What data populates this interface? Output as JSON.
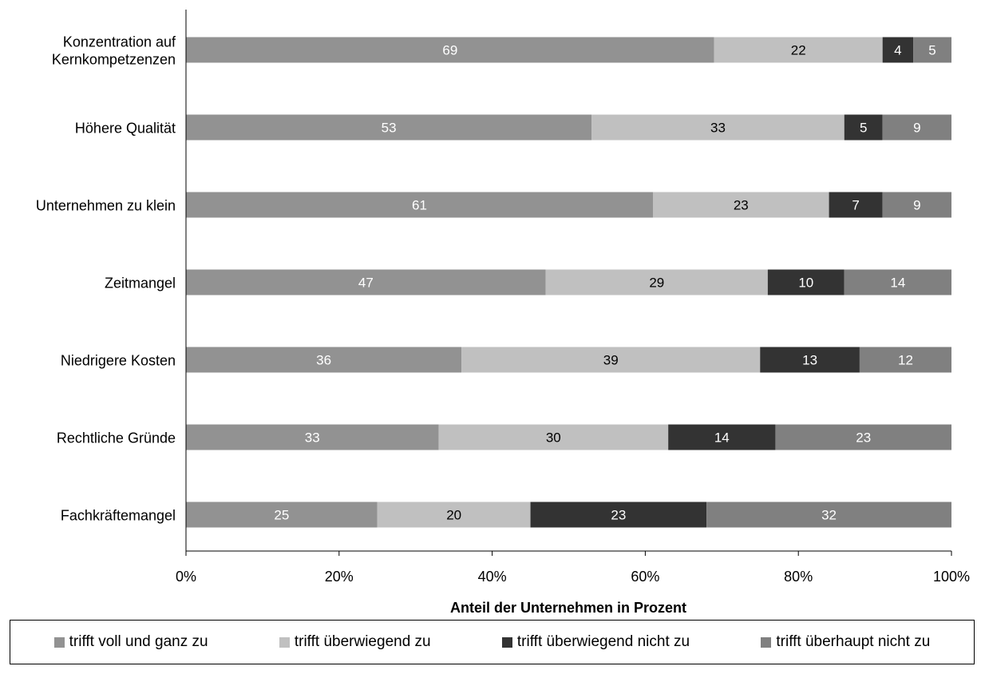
{
  "chart_data": {
    "type": "bar",
    "orientation": "horizontal",
    "stacked": true,
    "percent": true,
    "categories": [
      "Konzentration auf Kernkompetzenzen",
      "Höhere Qualität",
      "Unternehmen zu klein",
      "Zeitmangel",
      "Niedrigere Kosten",
      "Rechtliche Gründe",
      "Fachkräftemangel"
    ],
    "category_lines": [
      [
        "Konzentration auf",
        "Kernkompetzenzen"
      ],
      [
        "Höhere Qualität"
      ],
      [
        "Unternehmen zu klein"
      ],
      [
        "Zeitmangel"
      ],
      [
        "Niedrigere Kosten"
      ],
      [
        "Rechtliche Gründe"
      ],
      [
        "Fachkräftemangel"
      ]
    ],
    "series": [
      {
        "name": "trifft voll und ganz zu",
        "color": "#929292",
        "label_color": "#ffffff",
        "values": [
          69,
          53,
          61,
          47,
          36,
          33,
          25
        ]
      },
      {
        "name": "trifft überwiegend zu",
        "color": "#c0c0c0",
        "label_color": "#000000",
        "values": [
          22,
          33,
          23,
          29,
          39,
          30,
          20
        ]
      },
      {
        "name": "trifft überwiegend nicht zu",
        "color": "#333333",
        "label_color": "#ffffff",
        "values": [
          4,
          5,
          7,
          10,
          13,
          14,
          23
        ]
      },
      {
        "name": "trifft überhaupt nicht zu",
        "color": "#808080",
        "label_color": "#ffffff",
        "values": [
          5,
          9,
          9,
          14,
          12,
          23,
          32
        ]
      }
    ],
    "xlabel": "Anteil der Unternehmen in Prozent",
    "ylabel": "",
    "xlim": [
      0,
      100
    ],
    "xticks": [
      "0%",
      "20%",
      "40%",
      "60%",
      "80%",
      "100%"
    ],
    "grid": false,
    "legend": "bottom"
  }
}
